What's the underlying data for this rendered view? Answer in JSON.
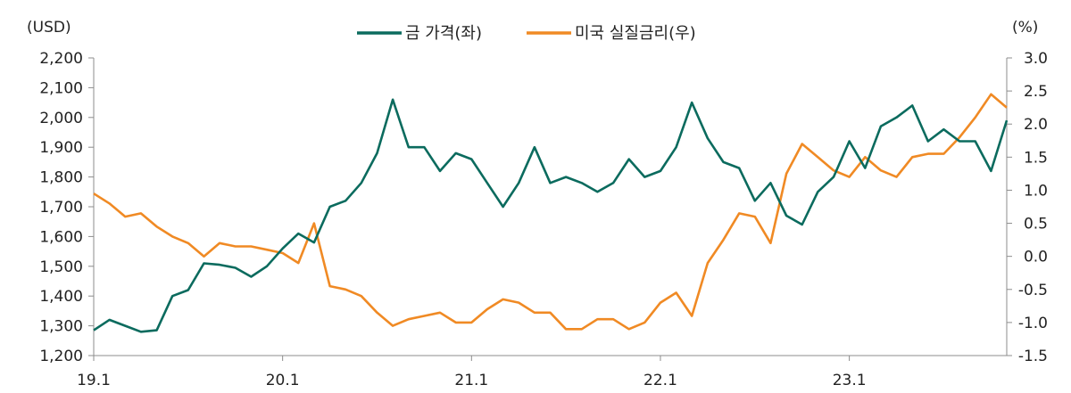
{
  "chart_data": {
    "type": "line",
    "left_axis_unit": "(USD)",
    "right_axis_unit": "(%)",
    "x_ticks": [
      "19.1",
      "20.1",
      "21.1",
      "22.1",
      "23.1"
    ],
    "left_ticks": [
      "1,200",
      "1,300",
      "1,400",
      "1,500",
      "1,600",
      "1,700",
      "1,800",
      "1,900",
      "2,000",
      "2,100",
      "2,200"
    ],
    "right_ticks": [
      "-1.5",
      "-1.0",
      "-0.5",
      "0.0",
      "0.5",
      "1.0",
      "1.5",
      "2.0",
      "2.5",
      "3.0"
    ],
    "xlim": [
      "2019-01",
      "2023-11"
    ],
    "ylim_left": [
      1200,
      2200
    ],
    "ylim_right": [
      -1.5,
      3.0
    ],
    "series": [
      {
        "name": "금 가격(좌)",
        "axis": "left",
        "color": "#0b6b5e",
        "points": [
          [
            "2019-01",
            1285
          ],
          [
            "2019-02",
            1320
          ],
          [
            "2019-03",
            1300
          ],
          [
            "2019-04",
            1280
          ],
          [
            "2019-05",
            1285
          ],
          [
            "2019-06",
            1400
          ],
          [
            "2019-07",
            1420
          ],
          [
            "2019-08",
            1510
          ],
          [
            "2019-09",
            1505
          ],
          [
            "2019-10",
            1495
          ],
          [
            "2019-11",
            1465
          ],
          [
            "2019-12",
            1500
          ],
          [
            "2020-01",
            1560
          ],
          [
            "2020-02",
            1610
          ],
          [
            "2020-03",
            1580
          ],
          [
            "2020-04",
            1700
          ],
          [
            "2020-05",
            1720
          ],
          [
            "2020-06",
            1780
          ],
          [
            "2020-07",
            1880
          ],
          [
            "2020-08",
            2060
          ],
          [
            "2020-09",
            1900
          ],
          [
            "2020-10",
            1900
          ],
          [
            "2020-11",
            1820
          ],
          [
            "2020-12",
            1880
          ],
          [
            "2021-01",
            1860
          ],
          [
            "2021-02",
            1780
          ],
          [
            "2021-03",
            1700
          ],
          [
            "2021-04",
            1780
          ],
          [
            "2021-05",
            1900
          ],
          [
            "2021-06",
            1780
          ],
          [
            "2021-07",
            1800
          ],
          [
            "2021-08",
            1780
          ],
          [
            "2021-09",
            1750
          ],
          [
            "2021-10",
            1780
          ],
          [
            "2021-11",
            1860
          ],
          [
            "2021-12",
            1800
          ],
          [
            "2022-01",
            1820
          ],
          [
            "2022-02",
            1900
          ],
          [
            "2022-03",
            2050
          ],
          [
            "2022-04",
            1930
          ],
          [
            "2022-05",
            1850
          ],
          [
            "2022-06",
            1830
          ],
          [
            "2022-07",
            1720
          ],
          [
            "2022-08",
            1780
          ],
          [
            "2022-09",
            1670
          ],
          [
            "2022-10",
            1640
          ],
          [
            "2022-11",
            1750
          ],
          [
            "2022-12",
            1800
          ],
          [
            "2023-01",
            1920
          ],
          [
            "2023-02",
            1830
          ],
          [
            "2023-03",
            1970
          ],
          [
            "2023-04",
            2000
          ],
          [
            "2023-05",
            2040
          ],
          [
            "2023-06",
            1920
          ],
          [
            "2023-07",
            1960
          ],
          [
            "2023-08",
            1920
          ],
          [
            "2023-09",
            1920
          ],
          [
            "2023-10",
            1820
          ],
          [
            "2023-11",
            1990
          ]
        ]
      },
      {
        "name": "미국 실질금리(우)",
        "axis": "right",
        "color": "#f08a24",
        "points": [
          [
            "2019-01",
            0.95
          ],
          [
            "2019-02",
            0.8
          ],
          [
            "2019-03",
            0.6
          ],
          [
            "2019-04",
            0.65
          ],
          [
            "2019-05",
            0.45
          ],
          [
            "2019-06",
            0.3
          ],
          [
            "2019-07",
            0.2
          ],
          [
            "2019-08",
            0.0
          ],
          [
            "2019-09",
            0.2
          ],
          [
            "2019-10",
            0.15
          ],
          [
            "2019-11",
            0.15
          ],
          [
            "2019-12",
            0.1
          ],
          [
            "2020-01",
            0.05
          ],
          [
            "2020-02",
            -0.1
          ],
          [
            "2020-03",
            0.5
          ],
          [
            "2020-04",
            -0.45
          ],
          [
            "2020-05",
            -0.5
          ],
          [
            "2020-06",
            -0.6
          ],
          [
            "2020-07",
            -0.85
          ],
          [
            "2020-08",
            -1.05
          ],
          [
            "2020-09",
            -0.95
          ],
          [
            "2020-10",
            -0.9
          ],
          [
            "2020-11",
            -0.85
          ],
          [
            "2020-12",
            -1.0
          ],
          [
            "2021-01",
            -1.0
          ],
          [
            "2021-02",
            -0.8
          ],
          [
            "2021-03",
            -0.65
          ],
          [
            "2021-04",
            -0.7
          ],
          [
            "2021-05",
            -0.85
          ],
          [
            "2021-06",
            -0.85
          ],
          [
            "2021-07",
            -1.1
          ],
          [
            "2021-08",
            -1.1
          ],
          [
            "2021-09",
            -0.95
          ],
          [
            "2021-10",
            -0.95
          ],
          [
            "2021-11",
            -1.1
          ],
          [
            "2021-12",
            -1.0
          ],
          [
            "2022-01",
            -0.7
          ],
          [
            "2022-02",
            -0.55
          ],
          [
            "2022-03",
            -0.9
          ],
          [
            "2022-04",
            -0.1
          ],
          [
            "2022-05",
            0.25
          ],
          [
            "2022-06",
            0.65
          ],
          [
            "2022-07",
            0.6
          ],
          [
            "2022-08",
            0.2
          ],
          [
            "2022-09",
            1.25
          ],
          [
            "2022-10",
            1.7
          ],
          [
            "2022-11",
            1.5
          ],
          [
            "2022-12",
            1.3
          ],
          [
            "2023-01",
            1.2
          ],
          [
            "2023-02",
            1.5
          ],
          [
            "2023-03",
            1.3
          ],
          [
            "2023-04",
            1.2
          ],
          [
            "2023-05",
            1.5
          ],
          [
            "2023-06",
            1.55
          ],
          [
            "2023-07",
            1.55
          ],
          [
            "2023-08",
            1.8
          ],
          [
            "2023-09",
            2.1
          ],
          [
            "2023-10",
            2.45
          ],
          [
            "2023-11",
            2.25
          ]
        ]
      }
    ]
  }
}
